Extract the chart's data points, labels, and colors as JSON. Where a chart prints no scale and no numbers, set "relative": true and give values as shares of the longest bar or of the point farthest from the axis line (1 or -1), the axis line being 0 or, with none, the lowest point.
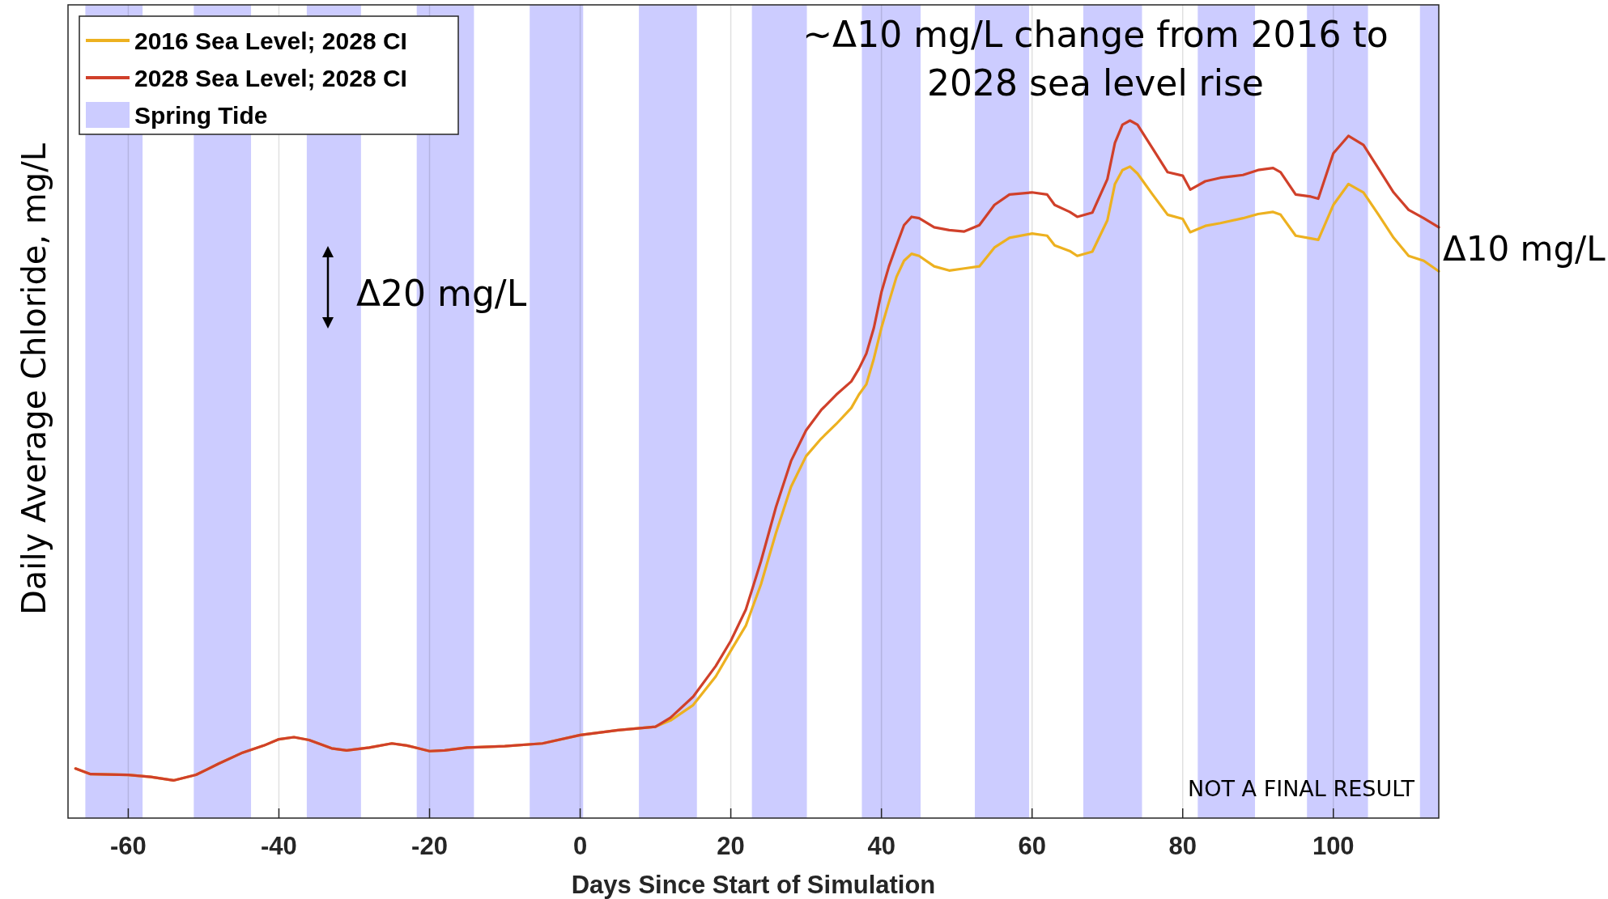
{
  "chart_data": {
    "type": "line",
    "xlabel": "Days Since Start of Simulation",
    "ylabel": "Daily Average Chloride, mg/L",
    "relative": true,
    "xlim": [
      -68,
      114
    ],
    "xticks": [
      -60,
      -40,
      -20,
      0,
      20,
      40,
      60,
      80,
      100
    ],
    "grid": "x",
    "legend": "top left",
    "line_style": "solid",
    "marker": "none",
    "x": [
      -67,
      -65,
      -60,
      -57,
      -54,
      -51,
      -48,
      -45,
      -42,
      -40,
      -38,
      -36,
      -33,
      -31,
      -28,
      -25,
      -23,
      -20,
      -18,
      -15,
      -10,
      -5,
      0,
      5,
      10,
      12,
      15,
      18,
      20,
      22,
      24,
      26,
      28,
      30,
      32,
      34,
      36,
      37,
      38,
      39,
      40,
      41,
      42,
      43,
      44,
      45,
      47,
      49,
      51,
      53,
      55,
      57,
      60,
      62,
      63,
      65,
      66,
      68,
      70,
      71,
      72,
      73,
      74,
      76,
      78,
      80,
      81,
      83,
      85,
      88,
      90,
      92,
      93,
      95,
      97,
      98,
      100,
      102,
      104,
      106,
      108,
      110,
      112,
      114
    ],
    "series": [
      {
        "name": "2016 Sea Level; 2028 CI",
        "color": "#edb120",
        "values": [
          0.071,
          0.063,
          0.062,
          0.059,
          0.054,
          0.062,
          0.078,
          0.093,
          0.104,
          0.113,
          0.116,
          0.112,
          0.1,
          0.097,
          0.101,
          0.107,
          0.104,
          0.096,
          0.097,
          0.101,
          0.103,
          0.107,
          0.119,
          0.126,
          0.131,
          0.14,
          0.162,
          0.203,
          0.24,
          0.276,
          0.335,
          0.409,
          0.475,
          0.519,
          0.544,
          0.565,
          0.588,
          0.607,
          0.622,
          0.659,
          0.703,
          0.74,
          0.776,
          0.799,
          0.809,
          0.806,
          0.791,
          0.785,
          0.788,
          0.791,
          0.818,
          0.832,
          0.838,
          0.835,
          0.821,
          0.813,
          0.806,
          0.812,
          0.857,
          0.909,
          0.929,
          0.934,
          0.924,
          0.894,
          0.865,
          0.859,
          0.84,
          0.849,
          0.853,
          0.86,
          0.866,
          0.869,
          0.865,
          0.835,
          0.831,
          0.829,
          0.879,
          0.909,
          0.897,
          0.865,
          0.832,
          0.806,
          0.799,
          0.784
        ]
      },
      {
        "name": "2028 Sea Level; 2028 CI",
        "color": "#d0402a",
        "values": [
          0.071,
          0.063,
          0.062,
          0.059,
          0.054,
          0.062,
          0.078,
          0.093,
          0.104,
          0.113,
          0.116,
          0.112,
          0.1,
          0.097,
          0.101,
          0.107,
          0.104,
          0.096,
          0.097,
          0.101,
          0.103,
          0.107,
          0.119,
          0.126,
          0.131,
          0.144,
          0.174,
          0.218,
          0.254,
          0.299,
          0.368,
          0.446,
          0.512,
          0.556,
          0.585,
          0.607,
          0.626,
          0.644,
          0.666,
          0.703,
          0.754,
          0.791,
          0.821,
          0.85,
          0.862,
          0.86,
          0.847,
          0.843,
          0.841,
          0.85,
          0.879,
          0.894,
          0.897,
          0.894,
          0.879,
          0.869,
          0.862,
          0.868,
          0.916,
          0.968,
          0.994,
          1,
          0.994,
          0.96,
          0.926,
          0.921,
          0.901,
          0.913,
          0.918,
          0.922,
          0.929,
          0.932,
          0.926,
          0.894,
          0.891,
          0.888,
          0.953,
          0.978,
          0.965,
          0.931,
          0.897,
          0.872,
          0.86,
          0.847
        ]
      }
    ],
    "bands": [
      {
        "axis": "x",
        "from": -65.7,
        "to": -58.1,
        "label": "Spring Tide",
        "color": "#ccccff"
      },
      {
        "axis": "x",
        "from": -51.3,
        "to": -43.7,
        "color": "#ccccff"
      },
      {
        "axis": "x",
        "from": -36.3,
        "to": -29.1,
        "color": "#ccccff"
      },
      {
        "axis": "x",
        "from": -21.7,
        "to": -14.1,
        "color": "#ccccff"
      },
      {
        "axis": "x",
        "from": -6.7,
        "to": 0.4,
        "color": "#ccccff"
      },
      {
        "axis": "x",
        "from": 7.8,
        "to": 15.5,
        "color": "#ccccff"
      },
      {
        "axis": "x",
        "from": 22.8,
        "to": 30.1,
        "color": "#ccccff"
      },
      {
        "axis": "x",
        "from": 37.4,
        "to": 45.2,
        "color": "#ccccff"
      },
      {
        "axis": "x",
        "from": 52.4,
        "to": 59.6,
        "color": "#ccccff"
      },
      {
        "axis": "x",
        "from": 66.8,
        "to": 74.6,
        "color": "#ccccff"
      },
      {
        "axis": "x",
        "from": 82,
        "to": 89.6,
        "color": "#ccccff"
      },
      {
        "axis": "x",
        "from": 96.5,
        "to": 104.6,
        "color": "#ccccff"
      },
      {
        "axis": "x",
        "from": 111.5,
        "to": 114,
        "color": "#ccccff"
      }
    ],
    "annotations": [
      "~Δ10 mg/L change from 2016 to 2028 sea level rise",
      "Δ20 mg/L",
      "Δ10 mg/L",
      "NOT A FINAL RESULT"
    ]
  }
}
